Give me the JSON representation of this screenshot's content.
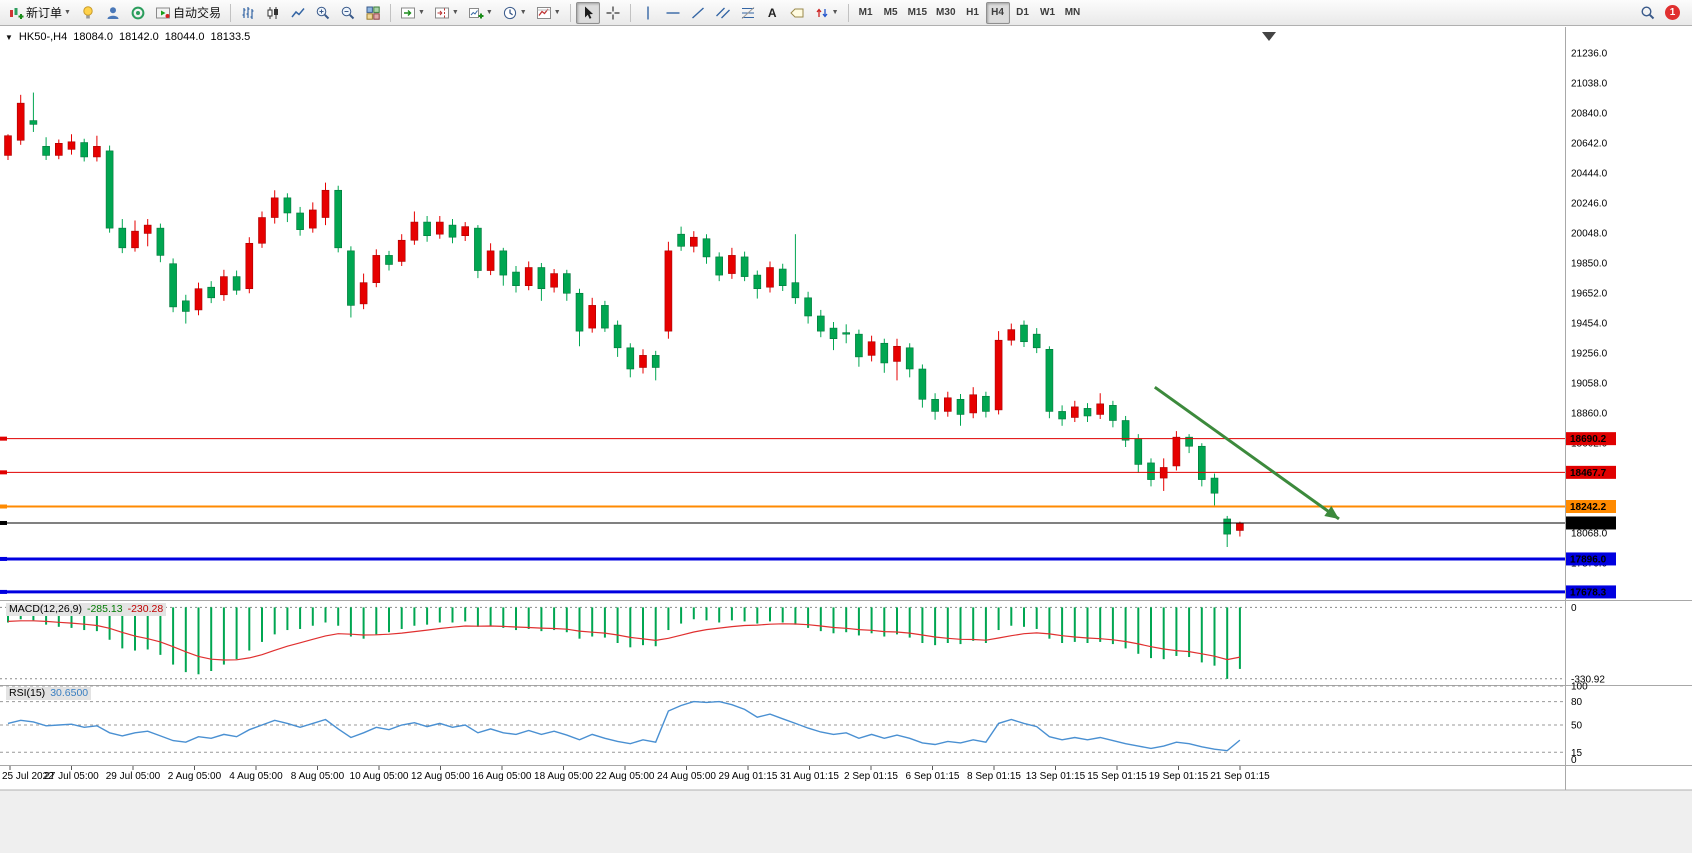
{
  "toolbar": {
    "new_order": "新订单",
    "autotrade": "自动交易",
    "text_tool": "A",
    "timeframes": [
      "M1",
      "M5",
      "M15",
      "M30",
      "H1",
      "H4",
      "D1",
      "W1",
      "MN"
    ],
    "active_timeframe": "H4",
    "notification_count": "1"
  },
  "chart_title": {
    "symbol_period": "HK50-,H4",
    "open": "18084.0",
    "high": "18142.0",
    "low": "18044.0",
    "close": "18133.5"
  },
  "indicators": {
    "macd": {
      "name": "MACD(12,26,9)",
      "value": "-285.13",
      "signal": "-230.28"
    },
    "rsi": {
      "name": "RSI(15)",
      "value": "30.6500"
    }
  },
  "chart_data": {
    "type": "candlestick",
    "symbol": "HK50-",
    "period": "H4",
    "colors": {
      "up": "#e60000",
      "up_border": "#a80000",
      "down": "#00a651",
      "down_border": "#00763a",
      "macd_histogram": "#00a651",
      "macd_signal": "#e03030",
      "rsi_line": "#4a90d2",
      "arrow": "#3c8a3c"
    },
    "price_axis": {
      "max": 21388,
      "min": 17625,
      "labels": [
        "21236.0",
        "21038.0",
        "20840.0",
        "20642.0",
        "20444.0",
        "20246.0",
        "20048.0",
        "19850.0",
        "19652.0",
        "19454.0",
        "19256.0",
        "19058.0",
        "18860.0",
        "18662.0",
        "18068.0",
        "17870.0"
      ]
    },
    "candles": [
      [
        20560,
        20700,
        20530,
        20690
      ],
      [
        20660,
        20960,
        20630,
        20905
      ],
      [
        20790,
        20975,
        20715,
        20765
      ],
      [
        20620,
        20680,
        20530,
        20560
      ],
      [
        20560,
        20665,
        20535,
        20640
      ],
      [
        20600,
        20700,
        20565,
        20650
      ],
      [
        20645,
        20670,
        20520,
        20550
      ],
      [
        20550,
        20690,
        20520,
        20620
      ],
      [
        20590,
        20625,
        20050,
        20080
      ],
      [
        20080,
        20140,
        19915,
        19950
      ],
      [
        19950,
        20130,
        19925,
        20060
      ],
      [
        20045,
        20140,
        19960,
        20100
      ],
      [
        20080,
        20110,
        19855,
        19900
      ],
      [
        19845,
        19880,
        19525,
        19560
      ],
      [
        19600,
        19640,
        19450,
        19530
      ],
      [
        19540,
        19720,
        19505,
        19680
      ],
      [
        19690,
        19730,
        19585,
        19620
      ],
      [
        19640,
        19805,
        19600,
        19760
      ],
      [
        19760,
        19800,
        19640,
        19670
      ],
      [
        19680,
        20020,
        19650,
        19980
      ],
      [
        19980,
        20190,
        19950,
        20150
      ],
      [
        20150,
        20330,
        20110,
        20280
      ],
      [
        20280,
        20310,
        20120,
        20180
      ],
      [
        20180,
        20220,
        20030,
        20070
      ],
      [
        20080,
        20250,
        20050,
        20200
      ],
      [
        20150,
        20380,
        20100,
        20330
      ],
      [
        20330,
        20360,
        19920,
        19950
      ],
      [
        19930,
        19960,
        19490,
        19570
      ],
      [
        19580,
        19780,
        19545,
        19720
      ],
      [
        19720,
        19940,
        19690,
        19900
      ],
      [
        19900,
        19930,
        19800,
        19840
      ],
      [
        19860,
        20040,
        19830,
        20000
      ],
      [
        20000,
        20190,
        19970,
        20120
      ],
      [
        20120,
        20160,
        19990,
        20030
      ],
      [
        20040,
        20160,
        20010,
        20120
      ],
      [
        20100,
        20140,
        19980,
        20020
      ],
      [
        20030,
        20120,
        19995,
        20090
      ],
      [
        20080,
        20100,
        19750,
        19800
      ],
      [
        19800,
        19980,
        19770,
        19930
      ],
      [
        19930,
        19950,
        19700,
        19770
      ],
      [
        19790,
        19830,
        19655,
        19700
      ],
      [
        19700,
        19860,
        19670,
        19820
      ],
      [
        19820,
        19850,
        19600,
        19680
      ],
      [
        19690,
        19810,
        19655,
        19780
      ],
      [
        19780,
        19805,
        19600,
        19650
      ],
      [
        19650,
        19680,
        19300,
        19400
      ],
      [
        19420,
        19620,
        19390,
        19570
      ],
      [
        19570,
        19600,
        19395,
        19420
      ],
      [
        19440,
        19470,
        19230,
        19290
      ],
      [
        19290,
        19320,
        19095,
        19150
      ],
      [
        19160,
        19280,
        19120,
        19240
      ],
      [
        19240,
        19270,
        19075,
        19160
      ],
      [
        19400,
        19990,
        19350,
        19930
      ],
      [
        20040,
        20090,
        19930,
        19960
      ],
      [
        19960,
        20060,
        19920,
        20020
      ],
      [
        20010,
        20040,
        19845,
        19890
      ],
      [
        19890,
        19920,
        19730,
        19770
      ],
      [
        19780,
        19950,
        19745,
        19900
      ],
      [
        19890,
        19925,
        19730,
        19760
      ],
      [
        19770,
        19800,
        19615,
        19680
      ],
      [
        19690,
        19860,
        19655,
        19820
      ],
      [
        19810,
        19845,
        19665,
        19700
      ],
      [
        19720,
        20040,
        19580,
        19620
      ],
      [
        19620,
        19660,
        19450,
        19500
      ],
      [
        19500,
        19540,
        19360,
        19400
      ],
      [
        19420,
        19460,
        19275,
        19350
      ],
      [
        19390,
        19445,
        19320,
        19380
      ],
      [
        19380,
        19410,
        19165,
        19230
      ],
      [
        19240,
        19370,
        19200,
        19330
      ],
      [
        19320,
        19350,
        19125,
        19190
      ],
      [
        19200,
        19350,
        19075,
        19300
      ],
      [
        19290,
        19320,
        19095,
        19150
      ],
      [
        19150,
        19180,
        18895,
        18950
      ],
      [
        18950,
        18990,
        18815,
        18870
      ],
      [
        18870,
        19000,
        18835,
        18960
      ],
      [
        18950,
        18985,
        18775,
        18850
      ],
      [
        18860,
        19030,
        18825,
        18980
      ],
      [
        18970,
        19000,
        18830,
        18870
      ],
      [
        18880,
        19400,
        18850,
        19340
      ],
      [
        19340,
        19450,
        19305,
        19410
      ],
      [
        19440,
        19470,
        19295,
        19330
      ],
      [
        19380,
        19420,
        19255,
        19290
      ],
      [
        19280,
        19300,
        18825,
        18870
      ],
      [
        18870,
        18910,
        18775,
        18820
      ],
      [
        18830,
        18940,
        18800,
        18900
      ],
      [
        18890,
        18925,
        18800,
        18840
      ],
      [
        18850,
        18990,
        18820,
        18920
      ],
      [
        18910,
        18940,
        18765,
        18810
      ],
      [
        18810,
        18840,
        18635,
        18680
      ],
      [
        18690,
        18720,
        18465,
        18520
      ],
      [
        18530,
        18560,
        18375,
        18420
      ],
      [
        18430,
        18560,
        18345,
        18500
      ],
      [
        18510,
        18740,
        18480,
        18700
      ],
      [
        18700,
        18720,
        18595,
        18640
      ],
      [
        18640,
        18660,
        18375,
        18420
      ],
      [
        18430,
        18460,
        18250,
        18330
      ],
      [
        18160,
        18180,
        17975,
        18060
      ],
      [
        18084,
        18142,
        18044,
        18133.5
      ]
    ],
    "horizontal_lines": [
      {
        "price": 18690.2,
        "label": "18690.2",
        "color": "#e00000",
        "width": 1
      },
      {
        "price": 18467.7,
        "label": "18467.7",
        "color": "#e00000",
        "width": 1
      },
      {
        "price": 18242.2,
        "label": "18242.2",
        "color": "#ff8a00",
        "width": 2
      },
      {
        "price": 17896.0,
        "label": "17896.0",
        "color": "#0000e0",
        "width": 3
      },
      {
        "price": 17678.3,
        "label": "17678.3",
        "color": "#0000e0",
        "width": 3
      }
    ],
    "current_price_line": {
      "price": 18133.5,
      "label": "18133.5",
      "color": "#000000",
      "width": 1
    },
    "trend_arrow": {
      "from": {
        "index": 90.3,
        "price": 19030
      },
      "to": {
        "index": 104.8,
        "price": 18160
      }
    },
    "macd": {
      "range": {
        "max": 25,
        "min": -355
      },
      "axis_labels": [
        {
          "value": 0,
          "label": "0"
        },
        {
          "value": -330.92,
          "label": "-330.92"
        }
      ],
      "histogram": [
        -70,
        -55,
        -60,
        -80,
        -90,
        -95,
        -105,
        -110,
        -150,
        -190,
        -200,
        -195,
        -220,
        -265,
        -300,
        -310,
        -295,
        -265,
        -240,
        -200,
        -160,
        -125,
        -105,
        -100,
        -85,
        -70,
        -85,
        -135,
        -145,
        -125,
        -115,
        -100,
        -85,
        -80,
        -70,
        -70,
        -65,
        -90,
        -85,
        -95,
        -105,
        -100,
        -110,
        -105,
        -115,
        -145,
        -135,
        -140,
        -165,
        -185,
        -175,
        -180,
        -105,
        -75,
        -55,
        -60,
        -70,
        -60,
        -65,
        -75,
        -65,
        -70,
        -80,
        -95,
        -110,
        -120,
        -115,
        -130,
        -120,
        -135,
        -125,
        -140,
        -165,
        -175,
        -165,
        -170,
        -155,
        -165,
        -105,
        -85,
        -90,
        -100,
        -145,
        -165,
        -160,
        -165,
        -160,
        -170,
        -190,
        -215,
        -235,
        -240,
        -225,
        -230,
        -255,
        -270,
        -331,
        -285.13
      ],
      "signal": [
        -65,
        -62,
        -62,
        -65,
        -69,
        -73,
        -78,
        -84,
        -97,
        -116,
        -133,
        -145,
        -160,
        -182,
        -206,
        -227,
        -240,
        -244,
        -243,
        -234,
        -219,
        -199,
        -180,
        -164,
        -148,
        -132,
        -122,
        -124,
        -128,
        -127,
        -124,
        -119,
        -112,
        -105,
        -98,
        -92,
        -86,
        -87,
        -86,
        -88,
        -91,
        -93,
        -96,
        -98,
        -101,
        -110,
        -115,
        -119,
        -128,
        -139,
        -146,
        -153,
        -143,
        -129,
        -114,
        -103,
        -96,
        -89,
        -84,
        -82,
        -78,
        -76,
        -77,
        -80,
        -86,
        -93,
        -97,
        -103,
        -106,
        -112,
        -114,
        -119,
        -128,
        -137,
        -143,
        -148,
        -149,
        -152,
        -142,
        -131,
        -122,
        -118,
        -123,
        -131,
        -137,
        -142,
        -145,
        -150,
        -158,
        -169,
        -182,
        -193,
        -200,
        -205,
        -215,
        -226,
        -242,
        -230.28
      ]
    },
    "rsi": {
      "range": {
        "max": 100,
        "min": 0
      },
      "levels": [
        100,
        80,
        50,
        15
      ],
      "axis_labels": [
        {
          "value": 100,
          "label": "100"
        },
        {
          "value": 80,
          "label": "80"
        },
        {
          "value": 50,
          "label": "50"
        },
        {
          "value": 15,
          "label": "15"
        },
        {
          "value": 0,
          "label": "0"
        }
      ],
      "values": [
        52,
        56,
        54,
        49,
        50,
        51,
        47,
        49,
        40,
        36,
        40,
        42,
        36,
        30,
        28,
        35,
        33,
        38,
        35,
        44,
        50,
        56,
        52,
        47,
        52,
        57,
        45,
        34,
        40,
        47,
        44,
        50,
        53,
        48,
        52,
        47,
        50,
        40,
        45,
        40,
        38,
        43,
        38,
        42,
        37,
        31,
        38,
        33,
        29,
        26,
        31,
        28,
        68,
        75,
        80,
        79,
        80,
        76,
        70,
        60,
        64,
        58,
        52,
        46,
        41,
        38,
        40,
        33,
        38,
        33,
        37,
        33,
        27,
        25,
        29,
        27,
        31,
        28,
        52,
        57,
        52,
        48,
        35,
        31,
        34,
        31,
        34,
        30,
        26,
        23,
        20,
        23,
        28,
        26,
        22,
        19,
        17,
        30.65
      ]
    },
    "date_axis": {
      "labels": [
        "25 Jul 2022",
        "27 Jul 05:00",
        "29 Jul 05:00",
        "2 Aug 05:00",
        "4 Aug 05:00",
        "8 Aug 05:00",
        "10 Aug 05:00",
        "12 Aug 05:00",
        "16 Aug 05:00",
        "18 Aug 05:00",
        "22 Aug 05:00",
        "24 Aug 05:00",
        "29 Aug 01:15",
        "31 Aug 01:15",
        "2 Sep 01:15",
        "6 Sep 01:15",
        "8 Sep 01:15",
        "13 Sep 01:15",
        "15 Sep 01:15",
        "19 Sep 01:15",
        "21 Sep 01:15"
      ]
    }
  }
}
